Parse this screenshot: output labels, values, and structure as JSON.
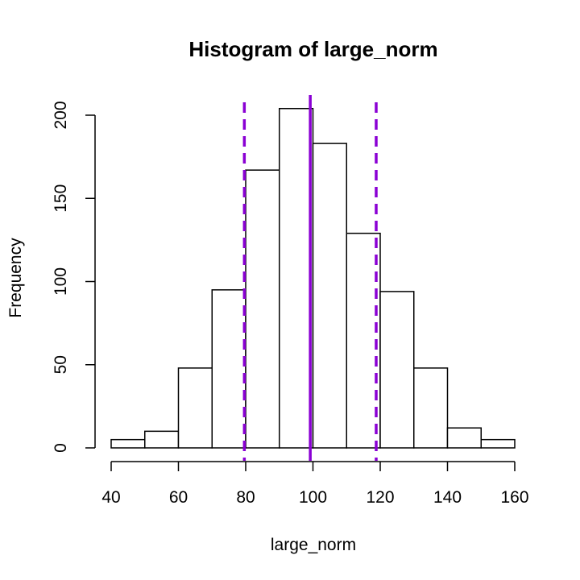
{
  "chart_data": {
    "type": "bar",
    "title": "Histogram of large_norm",
    "xlabel": "large_norm",
    "ylabel": "Frequency",
    "bins": [
      {
        "start": 40,
        "end": 50,
        "count": 5
      },
      {
        "start": 50,
        "end": 60,
        "count": 10
      },
      {
        "start": 60,
        "end": 70,
        "count": 48
      },
      {
        "start": 70,
        "end": 80,
        "count": 95
      },
      {
        "start": 80,
        "end": 90,
        "count": 167
      },
      {
        "start": 90,
        "end": 100,
        "count": 204
      },
      {
        "start": 100,
        "end": 110,
        "count": 183
      },
      {
        "start": 110,
        "end": 120,
        "count": 129
      },
      {
        "start": 120,
        "end": 130,
        "count": 94
      },
      {
        "start": 130,
        "end": 140,
        "count": 48
      },
      {
        "start": 140,
        "end": 150,
        "count": 12
      },
      {
        "start": 150,
        "end": 160,
        "count": 5
      }
    ],
    "xlim": [
      40,
      160
    ],
    "ylim": [
      0,
      200
    ],
    "x_ticks": [
      40,
      60,
      80,
      100,
      120,
      140,
      160
    ],
    "y_ticks": [
      0,
      50,
      100,
      150,
      200
    ],
    "vlines": [
      {
        "x": 99.2,
        "style": "solid",
        "color": "#8A00D4"
      },
      {
        "x": 79.6,
        "style": "dashed",
        "color": "#8A00D4"
      },
      {
        "x": 118.8,
        "style": "dashed",
        "color": "#8A00D4"
      }
    ],
    "grid": false,
    "bar_fill": "#ffffff",
    "bar_stroke": "#000000"
  }
}
